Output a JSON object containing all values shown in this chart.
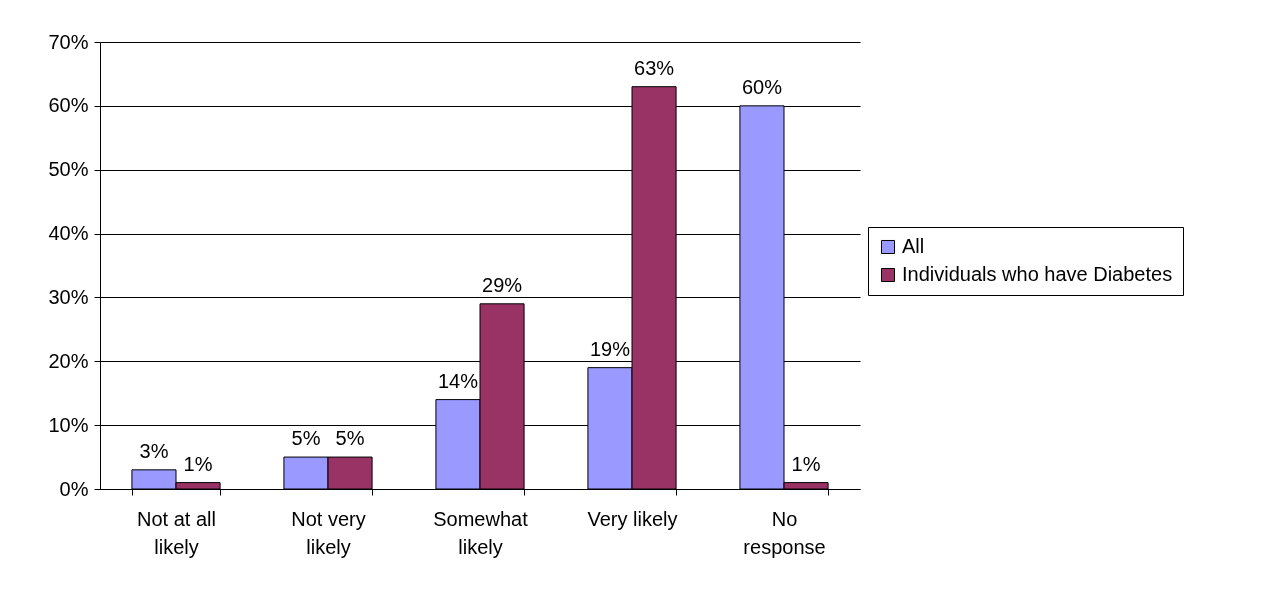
{
  "chart_data": {
    "type": "bar",
    "categories": [
      "Not at all likely",
      "Not very likely",
      "Somewhat likely",
      "Very likely",
      "No response"
    ],
    "series": [
      {
        "name": "All",
        "color": "#9999ff",
        "values": [
          3,
          5,
          14,
          19,
          60
        ],
        "value_labels": [
          "3%",
          "5%",
          "14%",
          "19%",
          "60%"
        ]
      },
      {
        "name": "Individuals who have Diabetes",
        "color": "#993366",
        "values": [
          1,
          5,
          29,
          63,
          1
        ],
        "value_labels": [
          "1%",
          "5%",
          "29%",
          "63%",
          "1%"
        ]
      }
    ],
    "ylim": [
      0,
      70
    ],
    "yticks": [
      {
        "value": 0,
        "label": "0%"
      },
      {
        "value": 10,
        "label": "10%"
      },
      {
        "value": 20,
        "label": "20%"
      },
      {
        "value": 30,
        "label": "30%"
      },
      {
        "value": 40,
        "label": "40%"
      },
      {
        "value": 50,
        "label": "50%"
      },
      {
        "value": 60,
        "label": "60%"
      },
      {
        "value": 70,
        "label": "70%"
      }
    ],
    "grid": "y",
    "legend": "right"
  }
}
